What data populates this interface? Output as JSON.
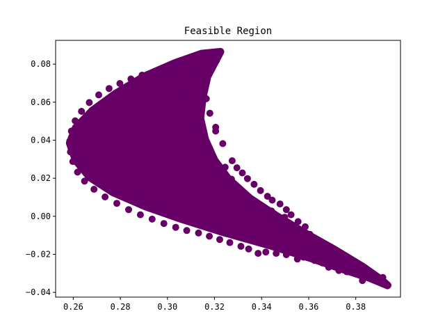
{
  "chart_data": {
    "type": "scatter",
    "title": "Feasible Region",
    "xlabel": "",
    "ylabel": "",
    "xlim": [
      0.2525,
      0.399
    ],
    "ylim": [
      -0.0425,
      0.0925
    ],
    "x_ticks": [
      "0.26",
      "0.28",
      "0.30",
      "0.32",
      "0.34",
      "0.36",
      "0.38"
    ],
    "y_ticks": [
      "-0.04",
      "-0.02",
      "0.00",
      "0.02",
      "0.04",
      "0.06",
      "0.08"
    ],
    "grid": false,
    "legend": "none",
    "marker_color": "#660066",
    "region": {
      "min_risk_point": [
        0.2585,
        0.0385
      ],
      "max_return_point": [
        0.3225,
        0.0865
      ],
      "min_return_point": [
        0.3935,
        -0.0363
      ]
    },
    "boundary": [
      [
        0.3225,
        0.0865
      ],
      [
        0.3145,
        0.0855
      ],
      [
        0.303,
        0.0805
      ],
      [
        0.29,
        0.0735
      ],
      [
        0.278,
        0.0645
      ],
      [
        0.268,
        0.0555
      ],
      [
        0.261,
        0.0465
      ],
      [
        0.2585,
        0.0385
      ],
      [
        0.261,
        0.0295
      ],
      [
        0.267,
        0.0205
      ],
      [
        0.277,
        0.0125
      ],
      [
        0.291,
        0.005
      ],
      [
        0.306,
        -0.0015
      ],
      [
        0.324,
        -0.0085
      ],
      [
        0.344,
        -0.0155
      ],
      [
        0.362,
        -0.0225
      ],
      [
        0.376,
        -0.0285
      ],
      [
        0.386,
        -0.0325
      ],
      [
        0.3935,
        -0.0363
      ],
      [
        0.391,
        -0.0335
      ],
      [
        0.383,
        -0.0265
      ],
      [
        0.371,
        -0.0175
      ],
      [
        0.358,
        -0.0085
      ],
      [
        0.346,
        0.0005
      ],
      [
        0.335,
        0.0095
      ],
      [
        0.326,
        0.0195
      ],
      [
        0.32,
        0.0295
      ],
      [
        0.316,
        0.0405
      ],
      [
        0.314,
        0.0515
      ],
      [
        0.315,
        0.0625
      ],
      [
        0.317,
        0.0735
      ],
      [
        0.3225,
        0.0865
      ]
    ],
    "edge_points": [
      [
        0.3225,
        0.0865
      ],
      [
        0.3195,
        0.0848
      ],
      [
        0.3165,
        0.0835
      ],
      [
        0.3208,
        0.0818
      ],
      [
        0.3125,
        0.0815
      ],
      [
        0.309,
        0.0805
      ],
      [
        0.306,
        0.0795
      ],
      [
        0.3175,
        0.0762
      ],
      [
        0.3118,
        0.0742
      ],
      [
        0.3045,
        0.0698
      ],
      [
        0.302,
        0.0772
      ],
      [
        0.298,
        0.0755
      ],
      [
        0.2945,
        0.0745
      ],
      [
        0.3155,
        0.0705
      ],
      [
        0.3098,
        0.0698
      ],
      [
        0.3005,
        0.0682
      ],
      [
        0.3132,
        0.0648
      ],
      [
        0.3092,
        0.0618
      ],
      [
        0.3165,
        0.0618
      ],
      [
        0.318,
        0.0542
      ],
      [
        0.3205,
        0.0468
      ],
      [
        0.3235,
        0.0382
      ],
      [
        0.3205,
        0.0448
      ],
      [
        0.3275,
        0.0292
      ],
      [
        0.3295,
        0.0255
      ],
      [
        0.3318,
        0.0228
      ],
      [
        0.334,
        0.0198
      ],
      [
        0.3368,
        0.0168
      ],
      [
        0.3395,
        0.0135
      ],
      [
        0.3425,
        0.0105
      ],
      [
        0.3445,
        0.0085
      ],
      [
        0.3478,
        0.0065
      ],
      [
        0.3505,
        0.0035
      ],
      [
        0.3498,
        -0.0005
      ],
      [
        0.3525,
        0.0008
      ],
      [
        0.3555,
        -0.0028
      ],
      [
        0.3585,
        -0.0055
      ],
      [
        0.3605,
        -0.0095
      ],
      [
        0.3598,
        -0.0128
      ],
      [
        0.3625,
        -0.0145
      ],
      [
        0.3655,
        -0.0178
      ],
      [
        0.3685,
        -0.0205
      ],
      [
        0.3712,
        -0.0235
      ],
      [
        0.3745,
        -0.0265
      ],
      [
        0.3768,
        -0.0258
      ],
      [
        0.3782,
        -0.0285
      ],
      [
        0.3812,
        -0.0305
      ],
      [
        0.3845,
        -0.0312
      ],
      [
        0.3828,
        -0.0338
      ],
      [
        0.3878,
        -0.0335
      ],
      [
        0.3905,
        -0.0348
      ],
      [
        0.3935,
        -0.0363
      ],
      [
        0.3915,
        -0.0322
      ],
      [
        0.3885,
        -0.0325
      ],
      [
        0.3762,
        -0.0292
      ],
      [
        0.3728,
        -0.0285
      ],
      [
        0.3705,
        -0.0252
      ],
      [
        0.3685,
        -0.0268
      ],
      [
        0.3658,
        -0.0245
      ],
      [
        0.3625,
        -0.0232
      ],
      [
        0.3578,
        -0.0215
      ],
      [
        0.3552,
        -0.0225
      ],
      [
        0.3505,
        -0.0202
      ],
      [
        0.3462,
        -0.0195
      ],
      [
        0.3418,
        -0.0188
      ],
      [
        0.3385,
        -0.0195
      ],
      [
        0.3345,
        -0.0172
      ],
      [
        0.3312,
        -0.0158
      ],
      [
        0.3265,
        -0.0138
      ],
      [
        0.3222,
        -0.0122
      ],
      [
        0.3178,
        -0.0105
      ],
      [
        0.3132,
        -0.0088
      ],
      [
        0.3082,
        -0.0075
      ],
      [
        0.3035,
        -0.0058
      ],
      [
        0.2985,
        -0.0038
      ],
      [
        0.2935,
        -0.0015
      ],
      [
        0.2885,
        0.0008
      ],
      [
        0.2835,
        0.0035
      ],
      [
        0.2785,
        0.0068
      ],
      [
        0.2735,
        0.0102
      ],
      [
        0.2688,
        0.0142
      ],
      [
        0.2648,
        0.0185
      ],
      [
        0.2618,
        0.0232
      ],
      [
        0.2598,
        0.0288
      ],
      [
        0.2588,
        0.0338
      ],
      [
        0.2585,
        0.0395
      ],
      [
        0.2592,
        0.0448
      ],
      [
        0.2608,
        0.0502
      ],
      [
        0.2635,
        0.0552
      ],
      [
        0.2668,
        0.0598
      ],
      [
        0.2708,
        0.0638
      ],
      [
        0.2752,
        0.0672
      ],
      [
        0.2798,
        0.0698
      ],
      [
        0.2845,
        0.0722
      ],
      [
        0.2892,
        0.0742
      ],
      [
        0.2945,
        0.0762
      ],
      [
        0.2995,
        0.0785
      ],
      [
        0.3042,
        0.0805
      ],
      [
        0.3088,
        0.0822
      ],
      [
        0.3135,
        0.0842
      ],
      [
        0.3178,
        0.0858
      ],
      [
        0.3068,
        0.0738
      ],
      [
        0.3108,
        0.0762
      ],
      [
        0.3022,
        0.0718
      ],
      [
        0.3442,
        0.0028
      ],
      [
        0.3472,
        -0.0022
      ],
      [
        0.3532,
        -0.0062
      ],
      [
        0.3568,
        -0.0092
      ],
      [
        0.3602,
        -0.0115
      ],
      [
        0.3642,
        -0.0162
      ],
      [
        0.3672,
        -0.0188
      ],
      [
        0.3368,
        0.0082
      ],
      [
        0.3412,
        0.0045
      ],
      [
        0.3315,
        0.0135
      ],
      [
        0.3272,
        0.0195
      ],
      [
        0.3245,
        0.0258
      ]
    ]
  }
}
